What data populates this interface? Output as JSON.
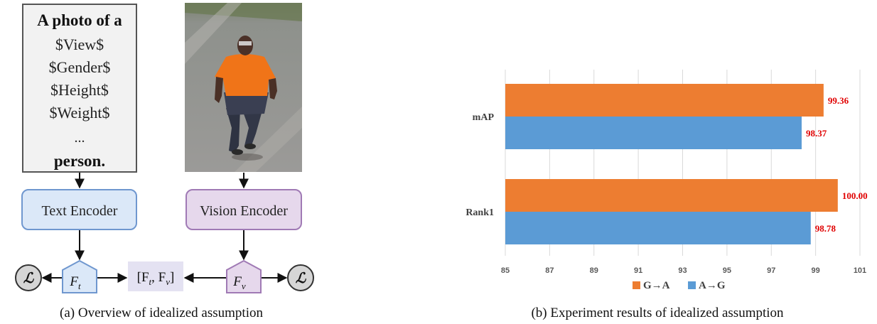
{
  "panel_a": {
    "prompt_lines": [
      "A photo of a",
      "$View$",
      "$Gender$",
      "$Height$",
      "$Weight$",
      "...",
      "person."
    ],
    "text_encoder_label": "Text Encoder",
    "vision_encoder_label": "Vision Encoder",
    "loss_symbol": "ℒ",
    "feature_t": "F",
    "feature_t_sub": "t",
    "feature_v": "F",
    "feature_v_sub": "v",
    "concat_open": "[F",
    "concat_t_sub": "t",
    "concat_mid": ", F",
    "concat_v_sub": "v",
    "concat_close": "]",
    "caption": "(a)  Overview of idealized assumption",
    "colors": {
      "text_encoder_fill": "#dbe8f8",
      "text_encoder_stroke": "#6f97cf",
      "vision_encoder_fill": "#e6d8ec",
      "vision_encoder_stroke": "#a07ab5",
      "prompt_fill": "#f2f2f2",
      "prompt_stroke": "#555555",
      "loss_fill": "#d6d6d6"
    }
  },
  "panel_b": {
    "caption": "(b)  Experiment results of idealized assumption",
    "legend": [
      {
        "label": "G→A",
        "color": "#ed7d31"
      },
      {
        "label": "A→G",
        "color": "#5b9bd5"
      }
    ]
  },
  "chart_data": {
    "type": "bar",
    "orientation": "horizontal",
    "categories": [
      "mAP",
      "Rank1"
    ],
    "series": [
      {
        "name": "G→A",
        "values": [
          99.36,
          100.0
        ],
        "labels": [
          "99.36",
          "100.00"
        ],
        "color": "#ed7d31"
      },
      {
        "name": "A→G",
        "values": [
          98.37,
          98.78
        ],
        "labels": [
          "98.37",
          "98.78"
        ],
        "color": "#5b9bd5"
      }
    ],
    "xlim": [
      85,
      101
    ],
    "xticks": [
      "85",
      "87",
      "89",
      "91",
      "93",
      "95",
      "97",
      "99",
      "101"
    ],
    "data_label_color": "#e00000",
    "grid": true,
    "legend_position": "bottom"
  }
}
